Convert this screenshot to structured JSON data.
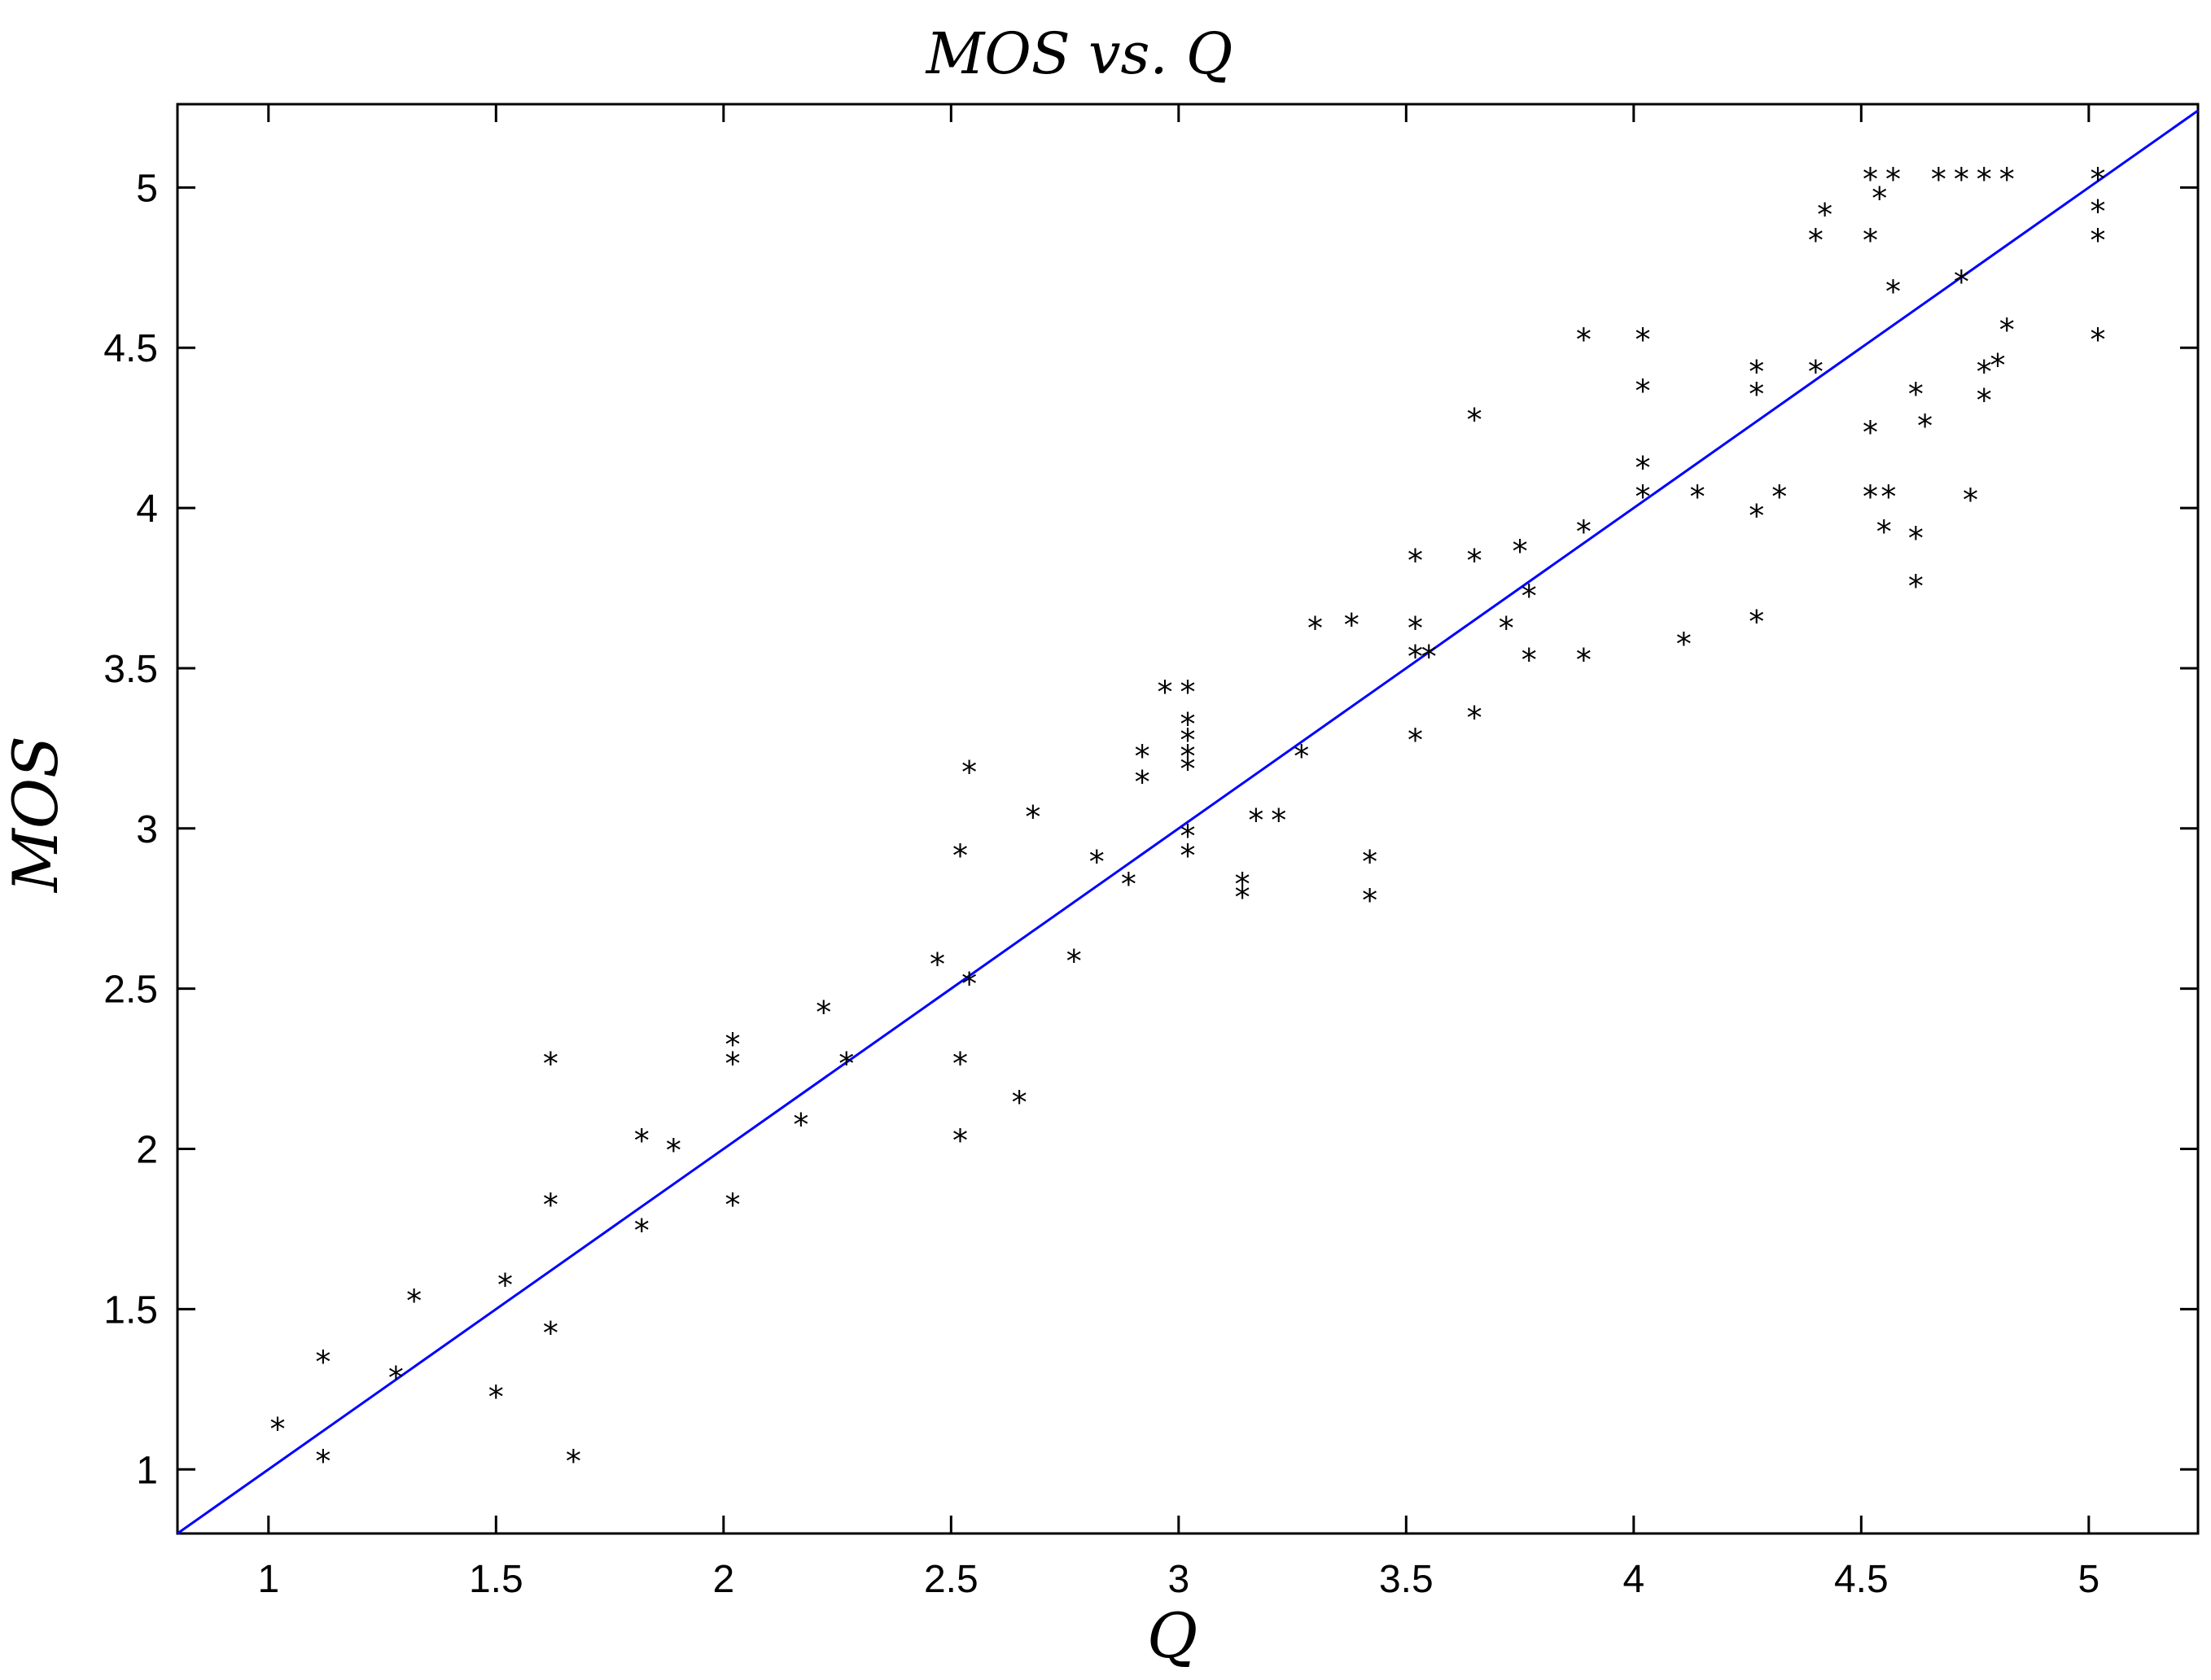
{
  "chart_data": {
    "type": "scatter",
    "title": "MOS vs. Q",
    "xlabel": "Q",
    "ylabel": "MOS",
    "xlim": [
      0.8,
      5.24
    ],
    "ylim": [
      0.8,
      5.26
    ],
    "xticks": [
      "1",
      "1.5",
      "2",
      "2.5",
      "3",
      "3.5",
      "4",
      "4.5",
      "5"
    ],
    "yticks": [
      "1",
      "1.5",
      "2",
      "2.5",
      "3",
      "3.5",
      "4",
      "4.5",
      "5"
    ],
    "grid": false,
    "marker": "*",
    "marker_color": "#000000",
    "line_color": "#0000ff",
    "fit_line": {
      "slope": 1.0,
      "intercept": 0.0
    },
    "points": [
      [
        1.02,
        1.13
      ],
      [
        1.12,
        1.34
      ],
      [
        1.12,
        1.03
      ],
      [
        1.28,
        1.29
      ],
      [
        1.32,
        1.53
      ],
      [
        1.5,
        1.23
      ],
      [
        1.52,
        1.58
      ],
      [
        1.62,
        2.27
      ],
      [
        1.62,
        1.83
      ],
      [
        1.62,
        1.43
      ],
      [
        1.67,
        1.03
      ],
      [
        1.82,
        2.03
      ],
      [
        1.82,
        1.75
      ],
      [
        1.89,
        2.0
      ],
      [
        2.02,
        2.33
      ],
      [
        2.02,
        2.27
      ],
      [
        2.02,
        1.83
      ],
      [
        2.17,
        2.08
      ],
      [
        2.22,
        2.43
      ],
      [
        2.27,
        2.27
      ],
      [
        2.47,
        2.58
      ],
      [
        2.52,
        2.92
      ],
      [
        2.52,
        2.27
      ],
      [
        2.52,
        2.03
      ],
      [
        2.54,
        3.18
      ],
      [
        2.54,
        2.52
      ],
      [
        2.65,
        2.15
      ],
      [
        2.68,
        3.04
      ],
      [
        2.77,
        2.59
      ],
      [
        2.82,
        2.9
      ],
      [
        2.89,
        2.83
      ],
      [
        2.92,
        3.23
      ],
      [
        2.92,
        3.15
      ],
      [
        2.97,
        3.43
      ],
      [
        3.02,
        3.43
      ],
      [
        3.02,
        3.33
      ],
      [
        3.02,
        3.28
      ],
      [
        3.02,
        3.23
      ],
      [
        3.02,
        3.19
      ],
      [
        3.02,
        2.98
      ],
      [
        3.02,
        2.92
      ],
      [
        3.14,
        2.83
      ],
      [
        3.14,
        2.79
      ],
      [
        3.17,
        3.03
      ],
      [
        3.22,
        3.03
      ],
      [
        3.27,
        3.23
      ],
      [
        3.3,
        3.63
      ],
      [
        3.38,
        3.64
      ],
      [
        3.42,
        2.9
      ],
      [
        3.42,
        2.78
      ],
      [
        3.52,
        3.84
      ],
      [
        3.52,
        3.63
      ],
      [
        3.52,
        3.54
      ],
      [
        3.52,
        3.28
      ],
      [
        3.55,
        3.54
      ],
      [
        3.65,
        4.28
      ],
      [
        3.65,
        3.84
      ],
      [
        3.65,
        3.35
      ],
      [
        3.72,
        3.63
      ],
      [
        3.75,
        3.87
      ],
      [
        3.77,
        3.73
      ],
      [
        3.77,
        3.53
      ],
      [
        3.89,
        4.53
      ],
      [
        3.89,
        3.93
      ],
      [
        3.89,
        3.53
      ],
      [
        4.02,
        4.53
      ],
      [
        4.02,
        4.37
      ],
      [
        4.02,
        4.13
      ],
      [
        4.02,
        4.04
      ],
      [
        4.11,
        3.58
      ],
      [
        4.14,
        4.04
      ],
      [
        4.27,
        4.43
      ],
      [
        4.27,
        4.36
      ],
      [
        4.27,
        3.98
      ],
      [
        4.27,
        3.65
      ],
      [
        4.32,
        4.04
      ],
      [
        4.4,
        4.84
      ],
      [
        4.4,
        4.43
      ],
      [
        4.42,
        4.92
      ],
      [
        4.52,
        5.03
      ],
      [
        4.52,
        4.84
      ],
      [
        4.52,
        4.24
      ],
      [
        4.52,
        4.04
      ],
      [
        4.54,
        4.97
      ],
      [
        4.55,
        3.93
      ],
      [
        4.56,
        4.04
      ],
      [
        4.57,
        5.03
      ],
      [
        4.57,
        4.68
      ],
      [
        4.62,
        4.36
      ],
      [
        4.62,
        3.91
      ],
      [
        4.62,
        3.76
      ],
      [
        4.64,
        4.26
      ],
      [
        4.67,
        5.03
      ],
      [
        4.72,
        5.03
      ],
      [
        4.72,
        4.71
      ],
      [
        4.74,
        4.03
      ],
      [
        4.77,
        5.03
      ],
      [
        4.77,
        4.43
      ],
      [
        4.77,
        4.34
      ],
      [
        4.8,
        4.45
      ],
      [
        4.82,
        5.03
      ],
      [
        4.82,
        4.56
      ],
      [
        5.02,
        5.03
      ],
      [
        5.02,
        4.93
      ],
      [
        5.02,
        4.84
      ],
      [
        5.02,
        4.53
      ]
    ]
  }
}
